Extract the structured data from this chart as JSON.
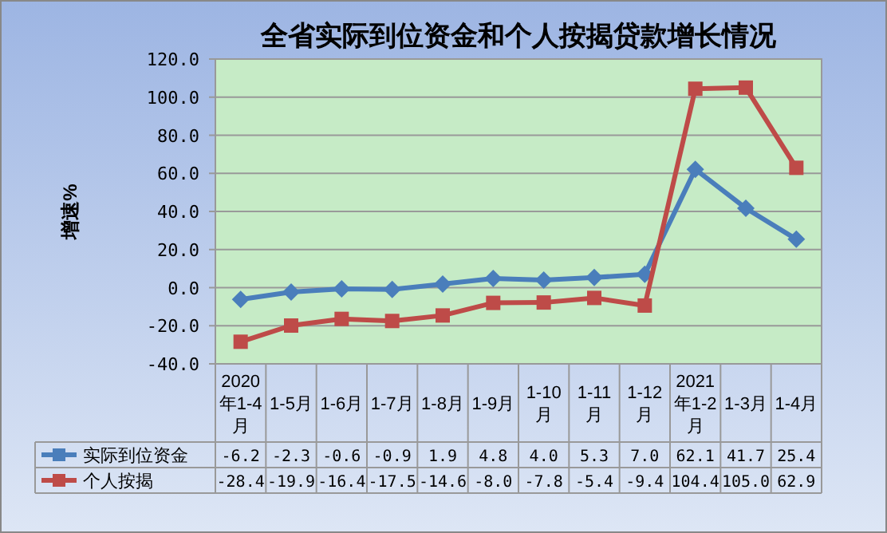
{
  "chart_data": {
    "type": "line",
    "title": "全省实际到位资金和个人按揭贷款增长情况",
    "ylabel": "增速%",
    "categories": [
      "2020年1-4月",
      "1-5月",
      "1-6月",
      "1-7月",
      "1-8月",
      "1-9月",
      "1-10月",
      "1-11月",
      "1-12月",
      "2021年1-2月",
      "1-3月",
      "1-4月"
    ],
    "ylim": [
      -40,
      120
    ],
    "yticks": [
      {
        "value": -40,
        "label": "-40.0"
      },
      {
        "value": -20,
        "label": "-20.0"
      },
      {
        "value": 0,
        "label": "0.0"
      },
      {
        "value": 20,
        "label": "20.0"
      },
      {
        "value": 40,
        "label": "40.0"
      },
      {
        "value": 60,
        "label": "60.0"
      },
      {
        "value": 80,
        "label": "80.0"
      },
      {
        "value": 100,
        "label": "100.0"
      },
      {
        "value": 120,
        "label": "120.0"
      }
    ],
    "grid": "y",
    "legend": "bottom",
    "series": [
      {
        "name": "实际到位资金",
        "color": "#4a7ebb",
        "marker": "diamond",
        "values": [
          -6.2,
          -2.3,
          -0.6,
          -0.9,
          1.9,
          4.8,
          4.0,
          5.3,
          7.0,
          62.1,
          41.7,
          25.4
        ],
        "value_labels": [
          "-6.2",
          "-2.3",
          "-0.6",
          "-0.9",
          "1.9",
          "4.8",
          "4.0",
          "5.3",
          "7.0",
          "62.1",
          "41.7",
          "25.4"
        ]
      },
      {
        "name": "个人按揭",
        "color": "#be4b48",
        "marker": "square",
        "values": [
          -28.4,
          -19.9,
          -16.4,
          -17.5,
          -14.6,
          -8.0,
          -7.8,
          -5.4,
          -9.4,
          104.4,
          105.0,
          62.9
        ],
        "value_labels": [
          "-28.4",
          "-19.9",
          "-16.4",
          "-17.5",
          "-14.6",
          "-8.0",
          "-7.8",
          "-5.4",
          "-9.4",
          "104.4",
          "105.0",
          "62.9"
        ]
      }
    ]
  }
}
